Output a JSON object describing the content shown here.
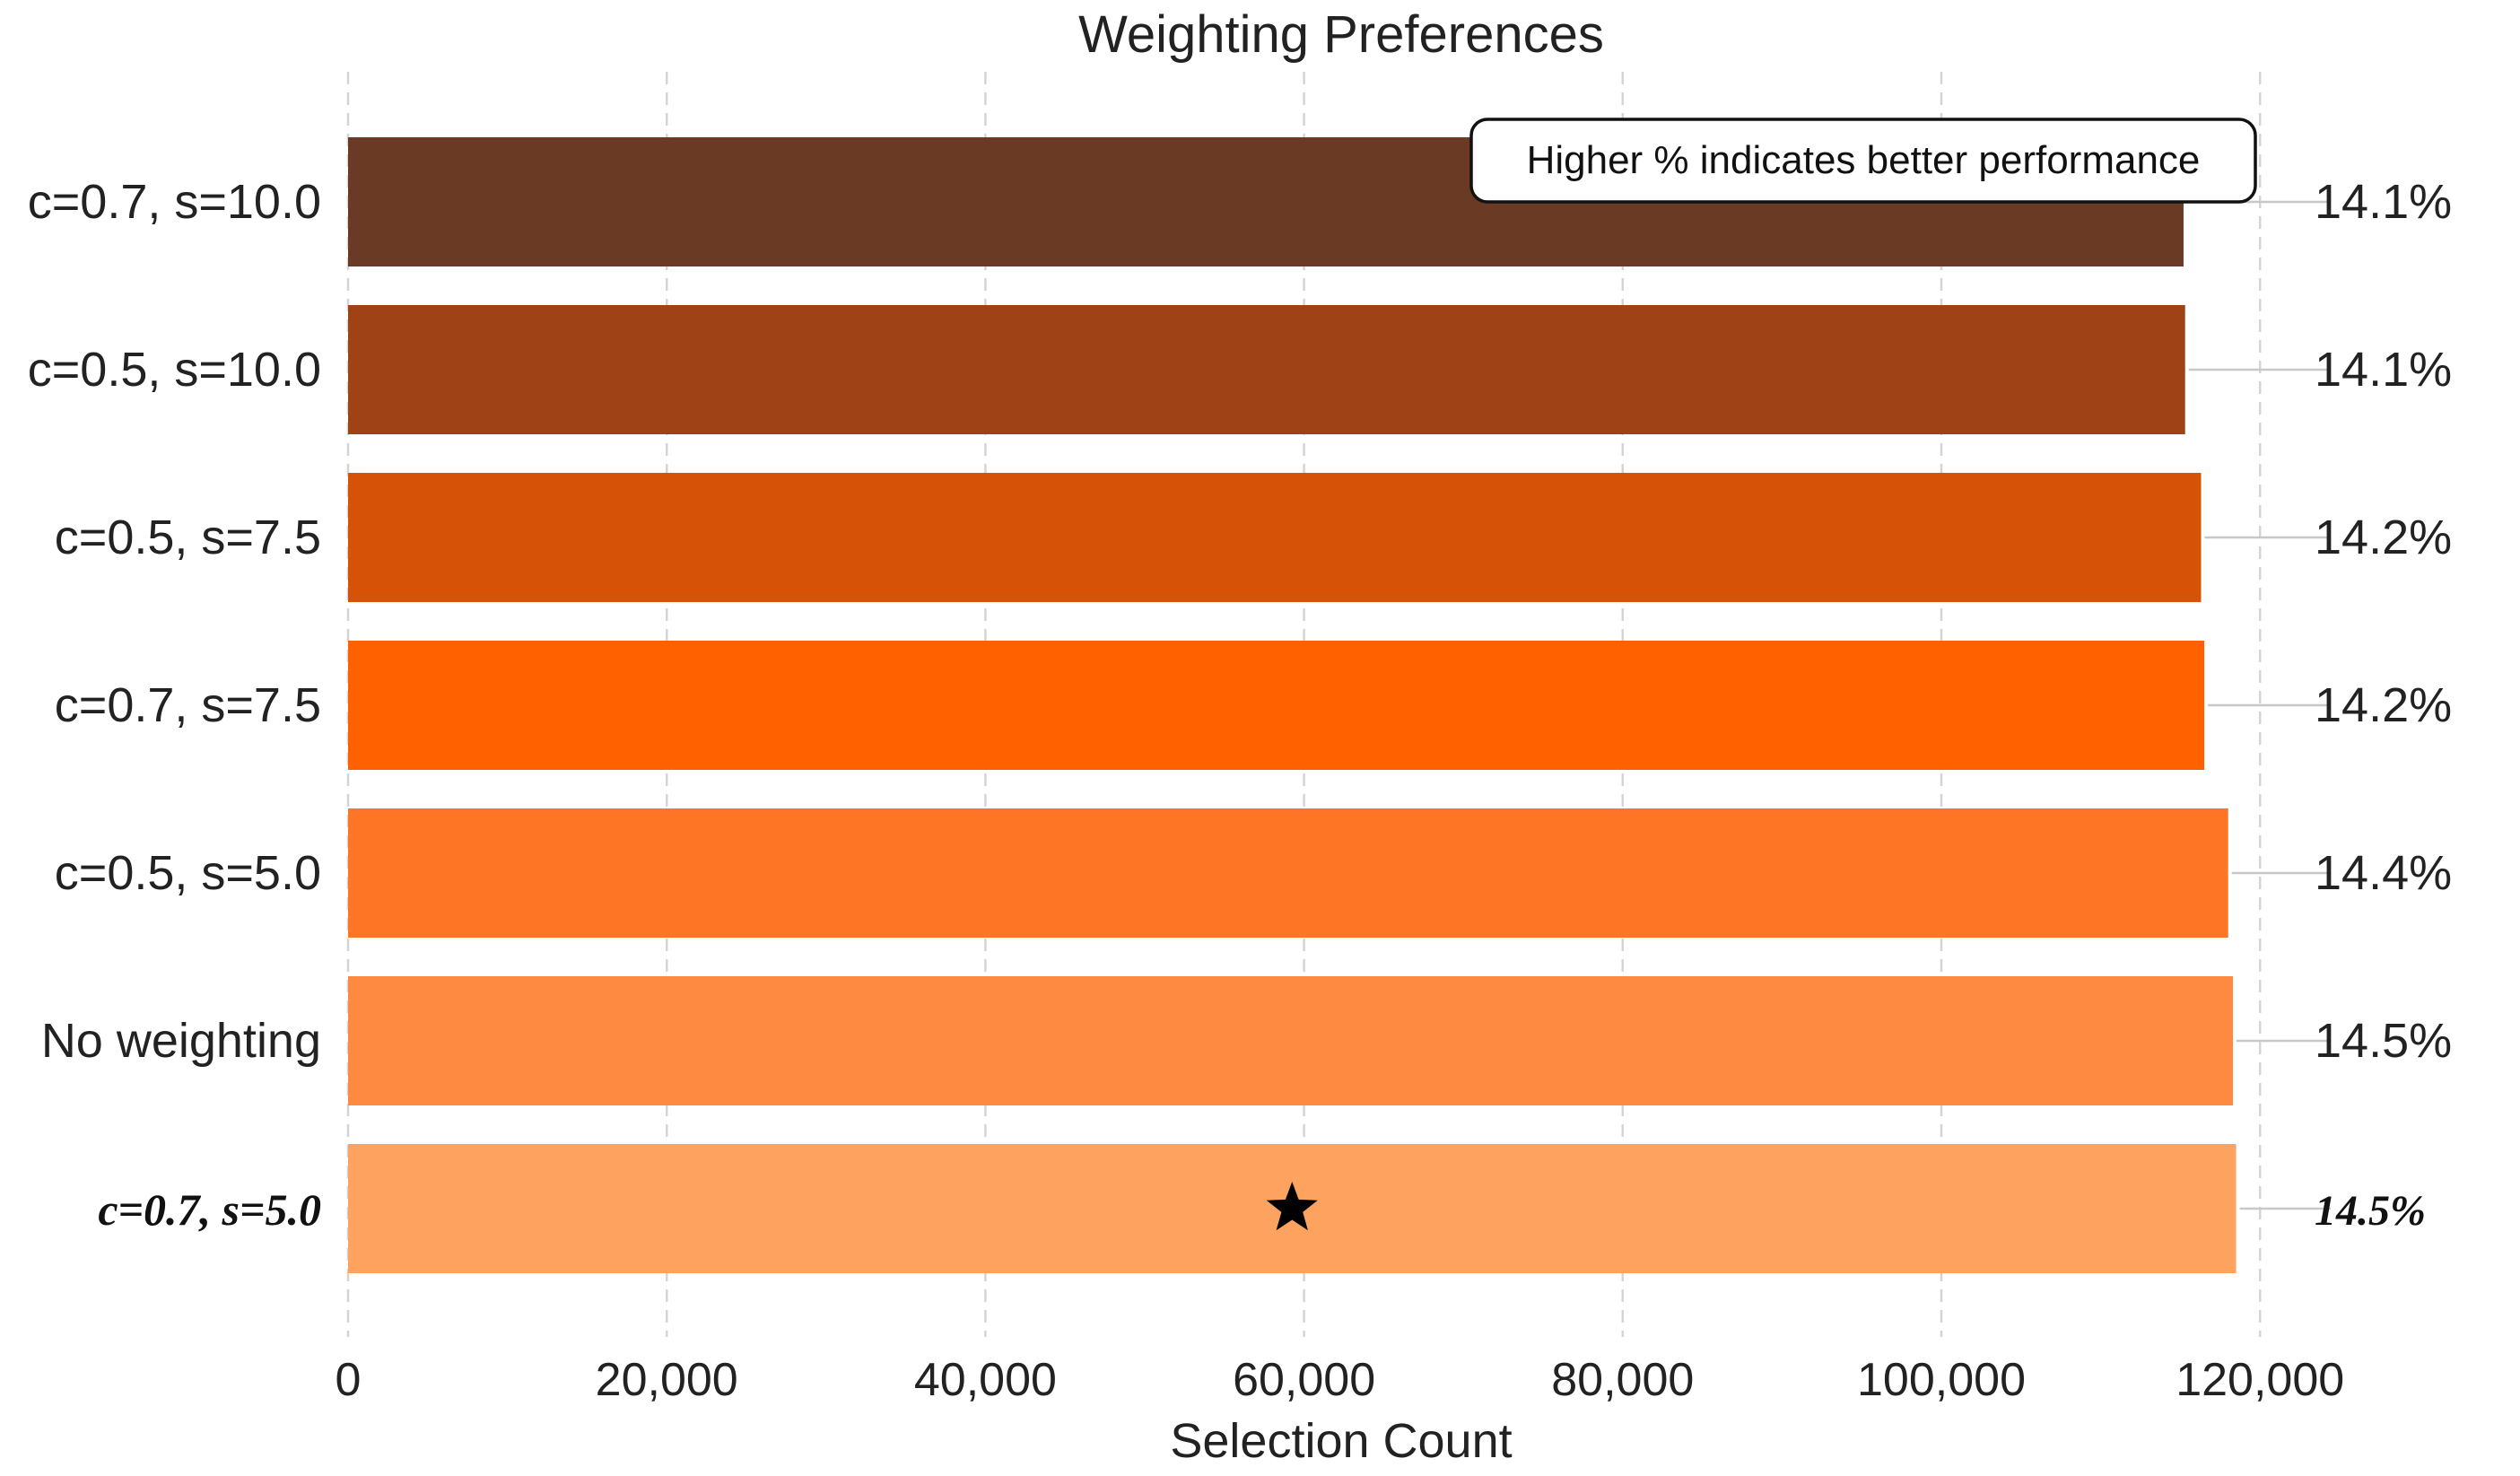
{
  "chart_data": {
    "type": "bar",
    "orientation": "horizontal",
    "title": "Weighting Preferences",
    "xlabel": "Selection Count",
    "ylabel": "",
    "xlim": [
      0,
      125000
    ],
    "x_ticks": [
      0,
      20000,
      40000,
      60000,
      80000,
      100000,
      120000
    ],
    "x_tick_labels": [
      "0",
      "20,000",
      "40,000",
      "60,000",
      "80,000",
      "100,000",
      "120,000"
    ],
    "grid": "vertical dashed",
    "categories": [
      "c=0.7, s=10.0",
      "c=0.5, s=10.0",
      "c=0.5, s=7.5",
      "c=0.7, s=7.5",
      "c=0.5, s=5.0",
      "No weighting",
      "c=0.7, s=5.0"
    ],
    "values": [
      115200,
      115300,
      116300,
      116500,
      118000,
      118300,
      118500
    ],
    "percent_labels": [
      "14.1%",
      "14.1%",
      "14.2%",
      "14.2%",
      "14.4%",
      "14.5%",
      "14.5%"
    ],
    "bar_colors": [
      "#6b3a25",
      "#9f4317",
      "#d65207",
      "#ff6000",
      "#fe7526",
      "#fd8a40",
      "#fea35f"
    ],
    "highlight_index": 6,
    "highlight_marker": "star-icon",
    "annotation": "Higher % indicates better performance",
    "annotation_placement": "top-right"
  }
}
